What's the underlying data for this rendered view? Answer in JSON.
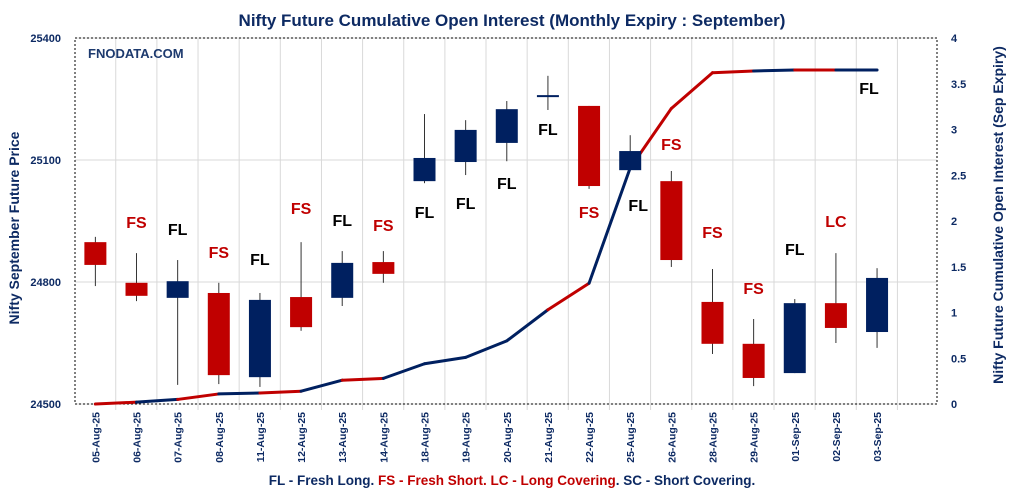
{
  "chart_data": {
    "type": "candlestick+line",
    "title": "Nifty Future Cumulative Open Interest (Monthly Expiry : September)",
    "watermark": "FNODATA.COM",
    "ylabel_left": "Nifty September Future Price",
    "ylabel_right": "Nifty Future Cumulative Open Interest (Sep Expiry)",
    "ylim_left": [
      24500,
      25400
    ],
    "yticks_left": [
      "24500",
      "24800",
      "25100",
      "25400"
    ],
    "ylim_right": [
      0,
      4
    ],
    "yticks_right": [
      "0",
      "0.5",
      "1",
      "1.5",
      "2",
      "2.5",
      "3",
      "3.5",
      "4"
    ],
    "grid": true,
    "categories": [
      "05-Aug-25",
      "06-Aug-25",
      "07-Aug-25",
      "08-Aug-25",
      "11-Aug-25",
      "12-Aug-25",
      "13-Aug-25",
      "14-Aug-25",
      "18-Aug-25",
      "19-Aug-25",
      "20-Aug-25",
      "21-Aug-25",
      "22-Aug-25",
      "25-Aug-25",
      "26-Aug-25",
      "28-Aug-25",
      "29-Aug-25",
      "01-Sep-25",
      "02-Sep-25",
      "03-Sep-25"
    ],
    "open": [
      24898,
      24798,
      24761,
      24773,
      24566,
      24763,
      24761,
      24849,
      25048,
      25095,
      25142,
      25257,
      25233,
      25075,
      25048,
      24751,
      24648,
      24576,
      24748,
      24677
    ],
    "high": [
      24911,
      24871,
      24854,
      24798,
      24773,
      24898,
      24876,
      24876,
      25213,
      25198,
      25245,
      25307,
      25233,
      25161,
      25073,
      24832,
      24709,
      24758,
      24871,
      24834
    ],
    "low": [
      24790,
      24753,
      24547,
      24549,
      24542,
      24680,
      24741,
      24798,
      25043,
      25063,
      25097,
      25223,
      25029,
      25075,
      24837,
      24623,
      24544,
      24576,
      24650,
      24638
    ],
    "close": [
      24842,
      24766,
      24802,
      24571,
      24756,
      24689,
      24847,
      24820,
      25105,
      25174,
      25225,
      25257,
      25036,
      25122,
      24854,
      24648,
      24564,
      24748,
      24687,
      24810
    ],
    "open_interest": [
      0.0,
      0.02,
      0.05,
      0.11,
      0.12,
      0.14,
      0.26,
      0.28,
      0.44,
      0.51,
      0.69,
      1.03,
      1.32,
      2.58,
      3.23,
      3.62,
      3.64,
      3.65,
      3.65,
      3.65
    ],
    "signals": [
      "",
      "FS",
      "FL",
      "FS",
      "FL",
      "FS",
      "FL",
      "FS",
      "FL",
      "FL",
      "FL",
      "FL",
      "FS",
      "FL",
      "FS",
      "FS",
      "FS",
      "FL",
      "LC",
      "FL"
    ],
    "colors": {
      "up": "#002060",
      "down": "#c00000",
      "FL": "#000000",
      "FS": "#c00000",
      "LC": "#c00000",
      "text": "#0d2a63"
    },
    "legend": {
      "fl": "FL - Fresh Long. ",
      "fs_lc": "FS - Fresh Short. LC - Long Covering",
      "sc": ".  SC - Short Covering."
    }
  }
}
